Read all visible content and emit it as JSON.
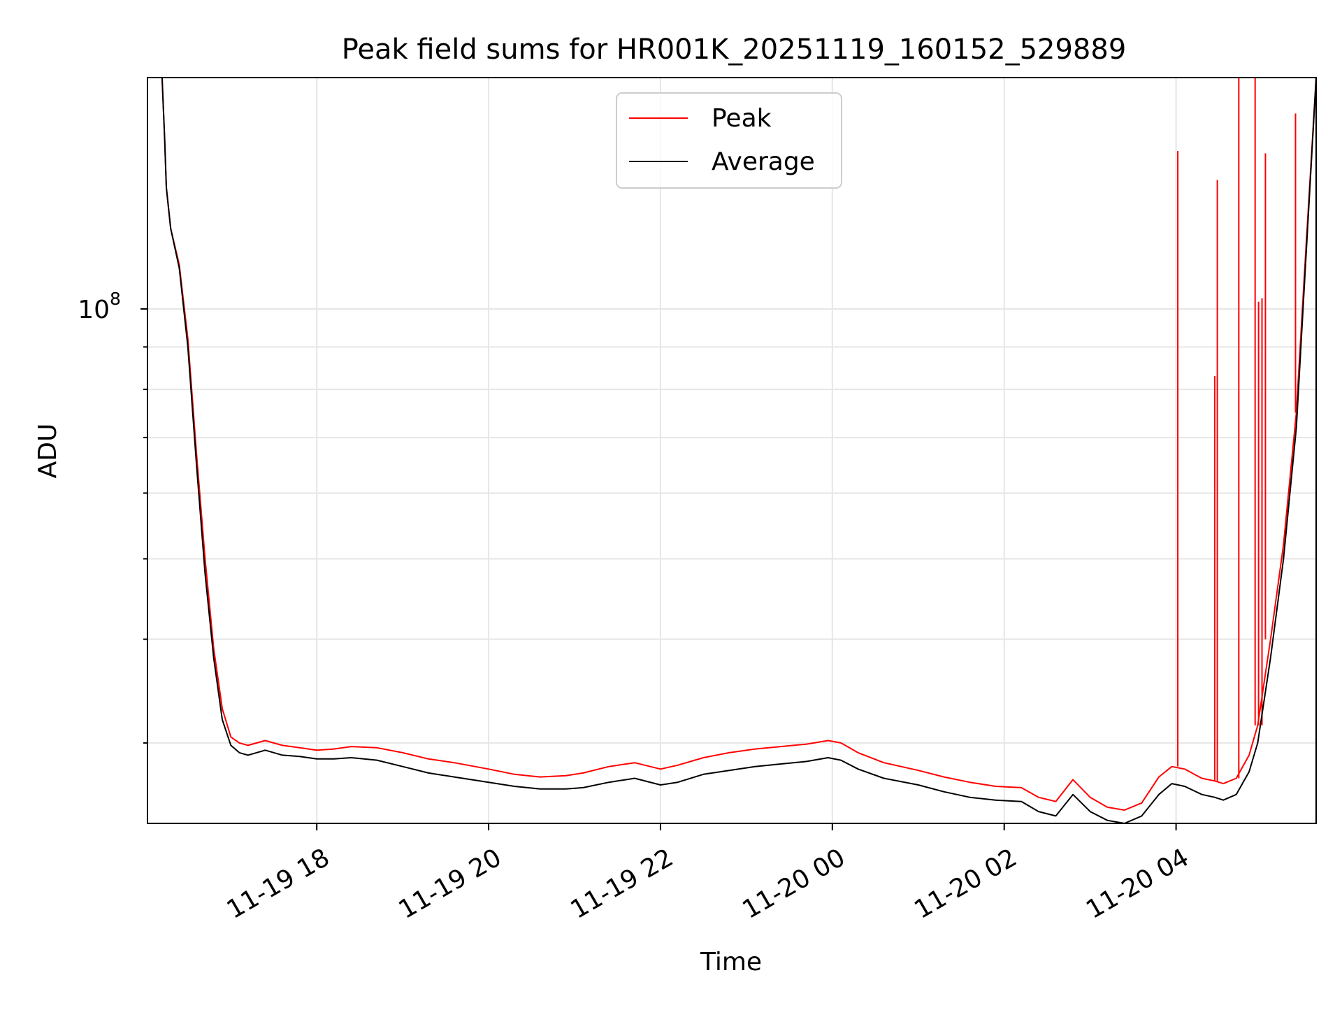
{
  "chart_data": {
    "type": "line",
    "title": "Peak field sums for HR001K_20251119_160152_529889",
    "xlabel": "Time",
    "ylabel": "ADU",
    "yscale": "log",
    "ylim": [
      24000000,
      190000000
    ],
    "xlim_hours": [
      -1.97,
      11.63
    ],
    "x_ticks": [
      {
        "label": "11-19 18",
        "hour": 0
      },
      {
        "label": "11-19 20",
        "hour": 2
      },
      {
        "label": "11-19 22",
        "hour": 4
      },
      {
        "label": "11-20 00",
        "hour": 6
      },
      {
        "label": "11-20 02",
        "hour": 8
      },
      {
        "label": "11-20 04",
        "hour": 10
      }
    ],
    "y_ticks": [
      {
        "base": "10",
        "exponent": "8",
        "value": 100000000
      }
    ],
    "y_minor_ticks": [
      30000000,
      40000000,
      50000000,
      60000000,
      70000000,
      80000000,
      90000000,
      200000000
    ],
    "grid": true,
    "legend": {
      "position": "upper center"
    },
    "series": [
      {
        "name": "Average",
        "color": "#000000",
        "x_hours": [
          -1.8,
          -1.77,
          -1.75,
          -1.7,
          -1.6,
          -1.5,
          -1.4,
          -1.3,
          -1.2,
          -1.1,
          -1.0,
          -0.9,
          -0.8,
          -0.6,
          -0.4,
          -0.2,
          0.0,
          0.2,
          0.4,
          0.7,
          1.0,
          1.3,
          1.6,
          2.0,
          2.3,
          2.6,
          2.9,
          3.1,
          3.4,
          3.7,
          4.0,
          4.2,
          4.5,
          4.8,
          5.1,
          5.4,
          5.7,
          5.95,
          6.1,
          6.3,
          6.6,
          7.0,
          7.3,
          7.6,
          7.9,
          8.2,
          8.4,
          8.6,
          8.8,
          9.0,
          9.2,
          9.4,
          9.6,
          9.8,
          9.95,
          10.1,
          10.3,
          10.45,
          10.55,
          10.7,
          10.85,
          10.95,
          11.1,
          11.25,
          11.4,
          11.5,
          11.63
        ],
        "values": [
          190000000,
          160000000,
          140000000,
          125000000,
          112000000,
          90000000,
          65000000,
          48000000,
          38000000,
          32000000,
          29800000,
          29200000,
          29000000,
          29400000,
          29000000,
          28900000,
          28700000,
          28700000,
          28800000,
          28600000,
          28100000,
          27600000,
          27300000,
          26900000,
          26600000,
          26400000,
          26400000,
          26500000,
          26900000,
          27200000,
          26700000,
          26900000,
          27500000,
          27800000,
          28100000,
          28300000,
          28500000,
          28800000,
          28600000,
          27900000,
          27200000,
          26700000,
          26200000,
          25800000,
          25600000,
          25500000,
          24800000,
          24500000,
          26000000,
          24800000,
          24200000,
          24000000,
          24500000,
          26000000,
          26800000,
          26600000,
          26000000,
          25800000,
          25600000,
          26000000,
          27700000,
          30000000,
          38000000,
          50000000,
          72000000,
          110000000,
          190000000
        ]
      },
      {
        "name": "Peak",
        "color": "#ff0000",
        "x_hours": [
          -1.8,
          -1.77,
          -1.75,
          -1.7,
          -1.6,
          -1.5,
          -1.4,
          -1.3,
          -1.2,
          -1.1,
          -1.0,
          -0.9,
          -0.8,
          -0.6,
          -0.4,
          -0.2,
          0.0,
          0.2,
          0.4,
          0.7,
          1.0,
          1.3,
          1.6,
          2.0,
          2.3,
          2.6,
          2.9,
          3.1,
          3.4,
          3.7,
          4.0,
          4.2,
          4.5,
          4.8,
          5.1,
          5.4,
          5.7,
          5.95,
          6.1,
          6.3,
          6.6,
          7.0,
          7.3,
          7.6,
          7.9,
          8.2,
          8.4,
          8.6,
          8.8,
          9.0,
          9.2,
          9.4,
          9.6,
          9.8,
          9.95,
          10.1,
          10.3,
          10.45,
          10.55,
          10.7,
          10.85,
          10.95,
          11.1,
          11.25,
          11.4,
          11.5,
          11.63
        ],
        "values": [
          190000000,
          160000000,
          140000000,
          125000000,
          113000000,
          92000000,
          67000000,
          50000000,
          39000000,
          33000000,
          30500000,
          30000000,
          29800000,
          30200000,
          29800000,
          29600000,
          29400000,
          29500000,
          29700000,
          29600000,
          29200000,
          28700000,
          28400000,
          27900000,
          27500000,
          27300000,
          27400000,
          27600000,
          28100000,
          28400000,
          27900000,
          28200000,
          28800000,
          29200000,
          29500000,
          29700000,
          29900000,
          30200000,
          30000000,
          29200000,
          28400000,
          27800000,
          27300000,
          26900000,
          26600000,
          26500000,
          25800000,
          25500000,
          27100000,
          25800000,
          25100000,
          24900000,
          25400000,
          27300000,
          28100000,
          27900000,
          27200000,
          27000000,
          26800000,
          27200000,
          29000000,
          31500000,
          40000000,
          52000000,
          75000000,
          113000000,
          190000000
        ],
        "spikes": [
          {
            "hour": 10.02,
            "value": 155000000
          },
          {
            "hour": 10.45,
            "value": 83000000
          },
          {
            "hour": 10.48,
            "value": 143000000
          },
          {
            "hour": 10.73,
            "value": 190000000
          },
          {
            "hour": 10.92,
            "value": 190000000
          },
          {
            "hour": 10.96,
            "value": 102000000
          },
          {
            "hour": 11.0,
            "value": 103000000
          },
          {
            "hour": 11.04,
            "value": 154000000
          },
          {
            "hour": 11.39,
            "value": 172000000
          }
        ]
      }
    ]
  }
}
